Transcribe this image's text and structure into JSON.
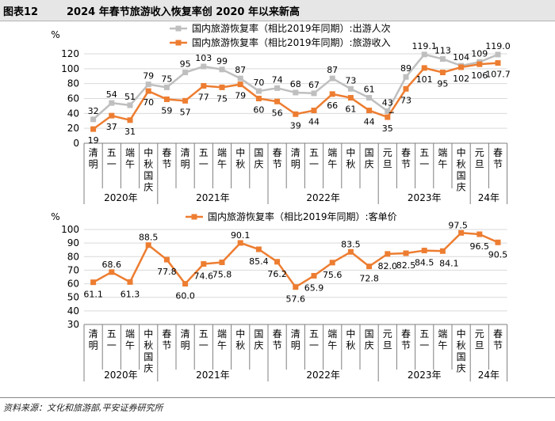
{
  "header": {
    "figure_label": "图表12",
    "title": "2024 年春节旅游收入恢复率创 2020 年以来新高"
  },
  "footer": {
    "source": "资料来源：文化和旅游部,平安证券研究所"
  },
  "colors": {
    "gray": "#bfbfbf",
    "orange": "#ed7d31",
    "grid": "#d9d9d9",
    "axis": "#7f7f7f"
  },
  "x_axis": {
    "categories": [
      "清明",
      "五一",
      "端午",
      "中秋国庆",
      "春节",
      "清明",
      "五一",
      "端午",
      "中秋",
      "国庆",
      "春节",
      "清明",
      "五一",
      "端午",
      "中秋",
      "国庆",
      "元旦",
      "春节",
      "五一",
      "端午",
      "中秋国庆",
      "元旦",
      "春节"
    ],
    "groups": [
      {
        "label": "2020年",
        "start": 0,
        "end": 3
      },
      {
        "label": "2021年",
        "start": 4,
        "end": 9
      },
      {
        "label": "2022年",
        "start": 10,
        "end": 15
      },
      {
        "label": "2023年",
        "start": 16,
        "end": 20
      },
      {
        "label": "24年",
        "start": 21,
        "end": 22
      }
    ]
  },
  "chart_data": [
    {
      "type": "line",
      "ylabel": "%",
      "ylim": [
        0,
        120
      ],
      "yticks": [
        0,
        20,
        40,
        60,
        80,
        100,
        120
      ],
      "legend_position": "top-center",
      "series": [
        {
          "name": "国内旅游恢复率（相比2019年同期）:出游人次",
          "color": "gray",
          "values": [
            32,
            54,
            51,
            79,
            75,
            95,
            103,
            99,
            87,
            70,
            74,
            68,
            67,
            87,
            73,
            61,
            43,
            89,
            119.1,
            113,
            104,
            109,
            119.0
          ],
          "labels": [
            "32",
            "54",
            "51",
            "79",
            "75",
            "95",
            "103",
            "99",
            "87",
            "70",
            "74",
            "68",
            "67",
            "87",
            "73",
            "61",
            "43",
            "89",
            "119.1",
            "113",
            "104",
            "109",
            "119.0"
          ]
        },
        {
          "name": "国内旅游恢复率（相比2019年同期）:旅游收入",
          "color": "orange",
          "values": [
            19,
            37,
            31,
            70,
            59,
            57,
            77,
            75,
            79,
            60,
            56,
            39,
            44,
            66,
            61,
            44,
            35,
            73,
            101,
            95,
            102,
            106,
            107.7
          ],
          "labels": [
            "19",
            "37",
            "31",
            "70",
            "59",
            "57",
            "77",
            "75",
            "79",
            "60",
            "56",
            "39",
            "44",
            "66",
            "61",
            "44",
            "35",
            "73",
            "101",
            "95",
            "102",
            "106",
            "107.7"
          ]
        }
      ]
    },
    {
      "type": "line",
      "ylabel": "%",
      "ylim": [
        30,
        100
      ],
      "yticks": [
        30,
        40,
        50,
        60,
        70,
        80,
        90,
        100
      ],
      "legend_position": "top-center",
      "series": [
        {
          "name": "国内旅游恢复率（相比2019年同期）:客单价",
          "color": "orange",
          "values": [
            61.1,
            68.6,
            61.3,
            88.5,
            77.8,
            60.0,
            74.6,
            75.8,
            90.1,
            85.4,
            76.2,
            57.6,
            65.9,
            75.6,
            83.5,
            72.8,
            82.0,
            82.5,
            84.5,
            84.1,
            97.5,
            96.5,
            90.5
          ],
          "labels": [
            "61.1",
            "68.6",
            "61.3",
            "88.5",
            "77.8",
            "60.0",
            "74.6",
            "75.8",
            "90.1",
            "85.4",
            "76.2",
            "57.6",
            "65.9",
            "75.6",
            "83.5",
            "72.8",
            "82.0",
            "82.5",
            "84.5",
            "84.1",
            "97.5",
            "96.5",
            "90.5"
          ]
        }
      ]
    }
  ]
}
